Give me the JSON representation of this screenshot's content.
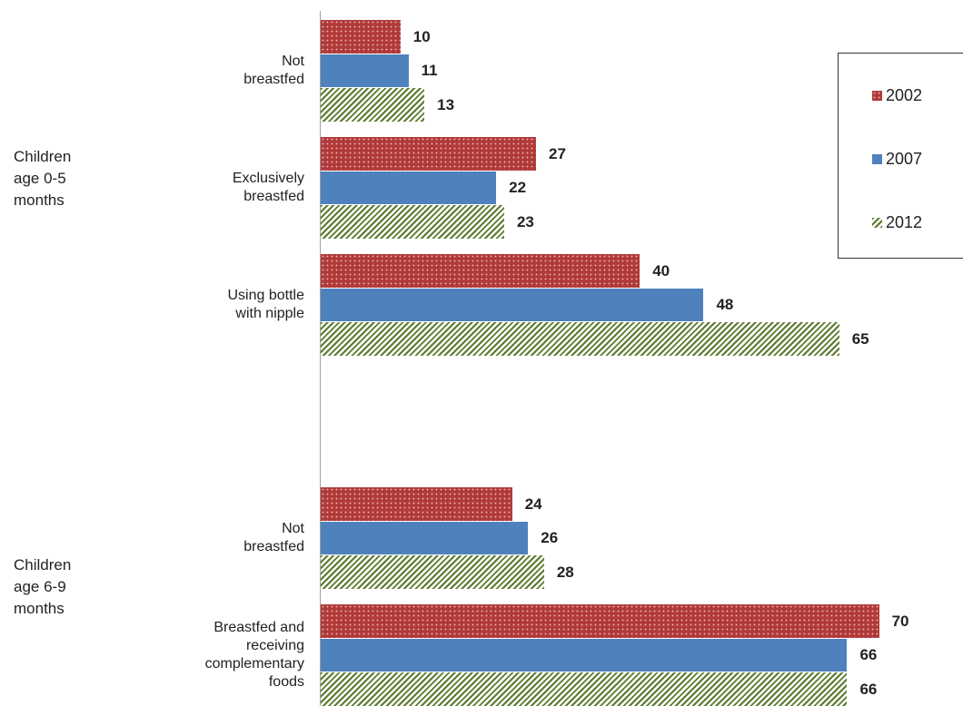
{
  "chart_data": {
    "type": "bar",
    "orientation": "horizontal",
    "groups": [
      {
        "label": "Children\nage 0-5\nmonths",
        "categories": [
          "Not\nbreastfed",
          "Exclusively\nbreastfed",
          "Using bottle\nwith nipple"
        ]
      },
      {
        "label": "Children\nage 6-9\nmonths",
        "categories": [
          "Not\nbreastfed",
          "Breastfed and\nreceiving\ncomplementary\nfoods"
        ]
      }
    ],
    "series": [
      {
        "name": "2002",
        "color": "#b03a3a",
        "pattern": "dots",
        "values": [
          10,
          27,
          40,
          24,
          70
        ]
      },
      {
        "name": "2007",
        "color": "#4f81bd",
        "pattern": "solid",
        "values": [
          11,
          22,
          48,
          26,
          66
        ]
      },
      {
        "name": "2012",
        "color": "#5b7a2c",
        "pattern": "stripes",
        "values": [
          13,
          23,
          65,
          28,
          66
        ]
      }
    ],
    "legend": "right"
  }
}
